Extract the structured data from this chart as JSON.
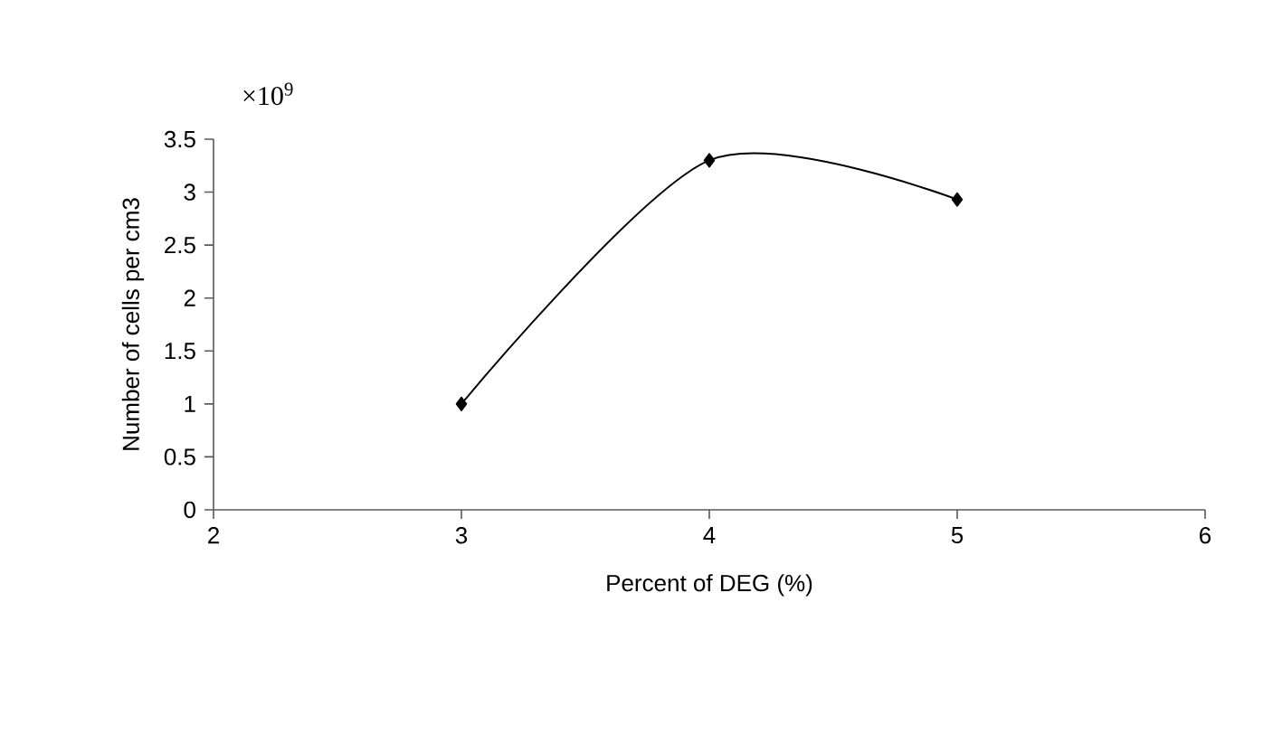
{
  "chart_data": {
    "type": "line",
    "xlabel": "Percent of DEG (%)",
    "ylabel": "Number of cells per cm3",
    "annotations": [
      "×10$^{9}$"
    ],
    "x": [
      3,
      4,
      5
    ],
    "series": [
      {
        "color": "#000000",
        "values": [
          1.0,
          3.3,
          2.93
        ]
      }
    ],
    "xlim": [
      2,
      6
    ],
    "xticks": [
      2,
      3,
      4,
      5,
      6
    ],
    "ylim": [
      0,
      3.5
    ],
    "yticks": [
      0,
      0.5,
      1,
      1.5,
      2,
      2.5,
      3,
      3.5
    ],
    "marker": "diamond",
    "line_style": "solid"
  }
}
